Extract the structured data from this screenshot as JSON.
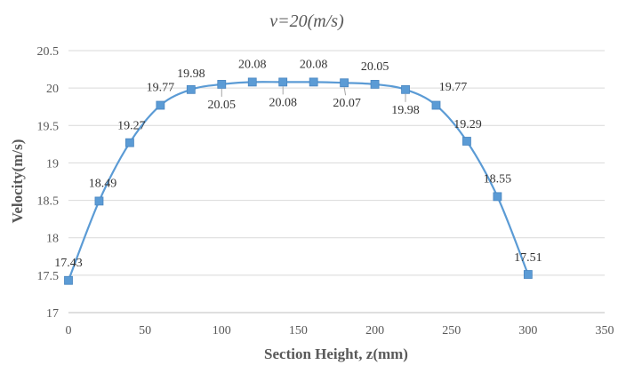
{
  "chart_data": {
    "type": "line",
    "title": "v=20(m/s)",
    "xlabel": "Section Height, z(mm)",
    "ylabel": "Velocity(m/s)",
    "xlim": [
      0,
      350
    ],
    "ylim": [
      17,
      20.5
    ],
    "xticks": [
      0,
      50,
      100,
      150,
      200,
      250,
      300,
      350
    ],
    "yticks": [
      17,
      17.5,
      18,
      18.5,
      19,
      19.5,
      20,
      20.5
    ],
    "ytick_labels": [
      "17",
      "17.5",
      "18",
      "18.5",
      "19",
      "19.5",
      "20",
      "20.5"
    ],
    "grid": true,
    "smooth": true,
    "series": [
      {
        "color": "#5b9bd5",
        "marker": "square",
        "x": [
          0,
          20,
          40,
          60,
          80,
          100,
          120,
          140,
          160,
          180,
          200,
          220,
          240,
          260,
          280,
          300
        ],
        "values": [
          17.43,
          18.49,
          19.27,
          19.77,
          19.98,
          20.05,
          20.08,
          20.08,
          20.08,
          20.07,
          20.05,
          19.98,
          19.77,
          19.29,
          18.55,
          17.51
        ],
        "data_labels": [
          "17.43",
          "18.49",
          "19.27",
          "19.77",
          "19.98",
          "20.05",
          "20.08",
          "20.08",
          "20.08",
          "20.07",
          "20.05",
          "19.98",
          "19.77",
          "19.29",
          "18.55",
          "17.51"
        ]
      }
    ]
  }
}
